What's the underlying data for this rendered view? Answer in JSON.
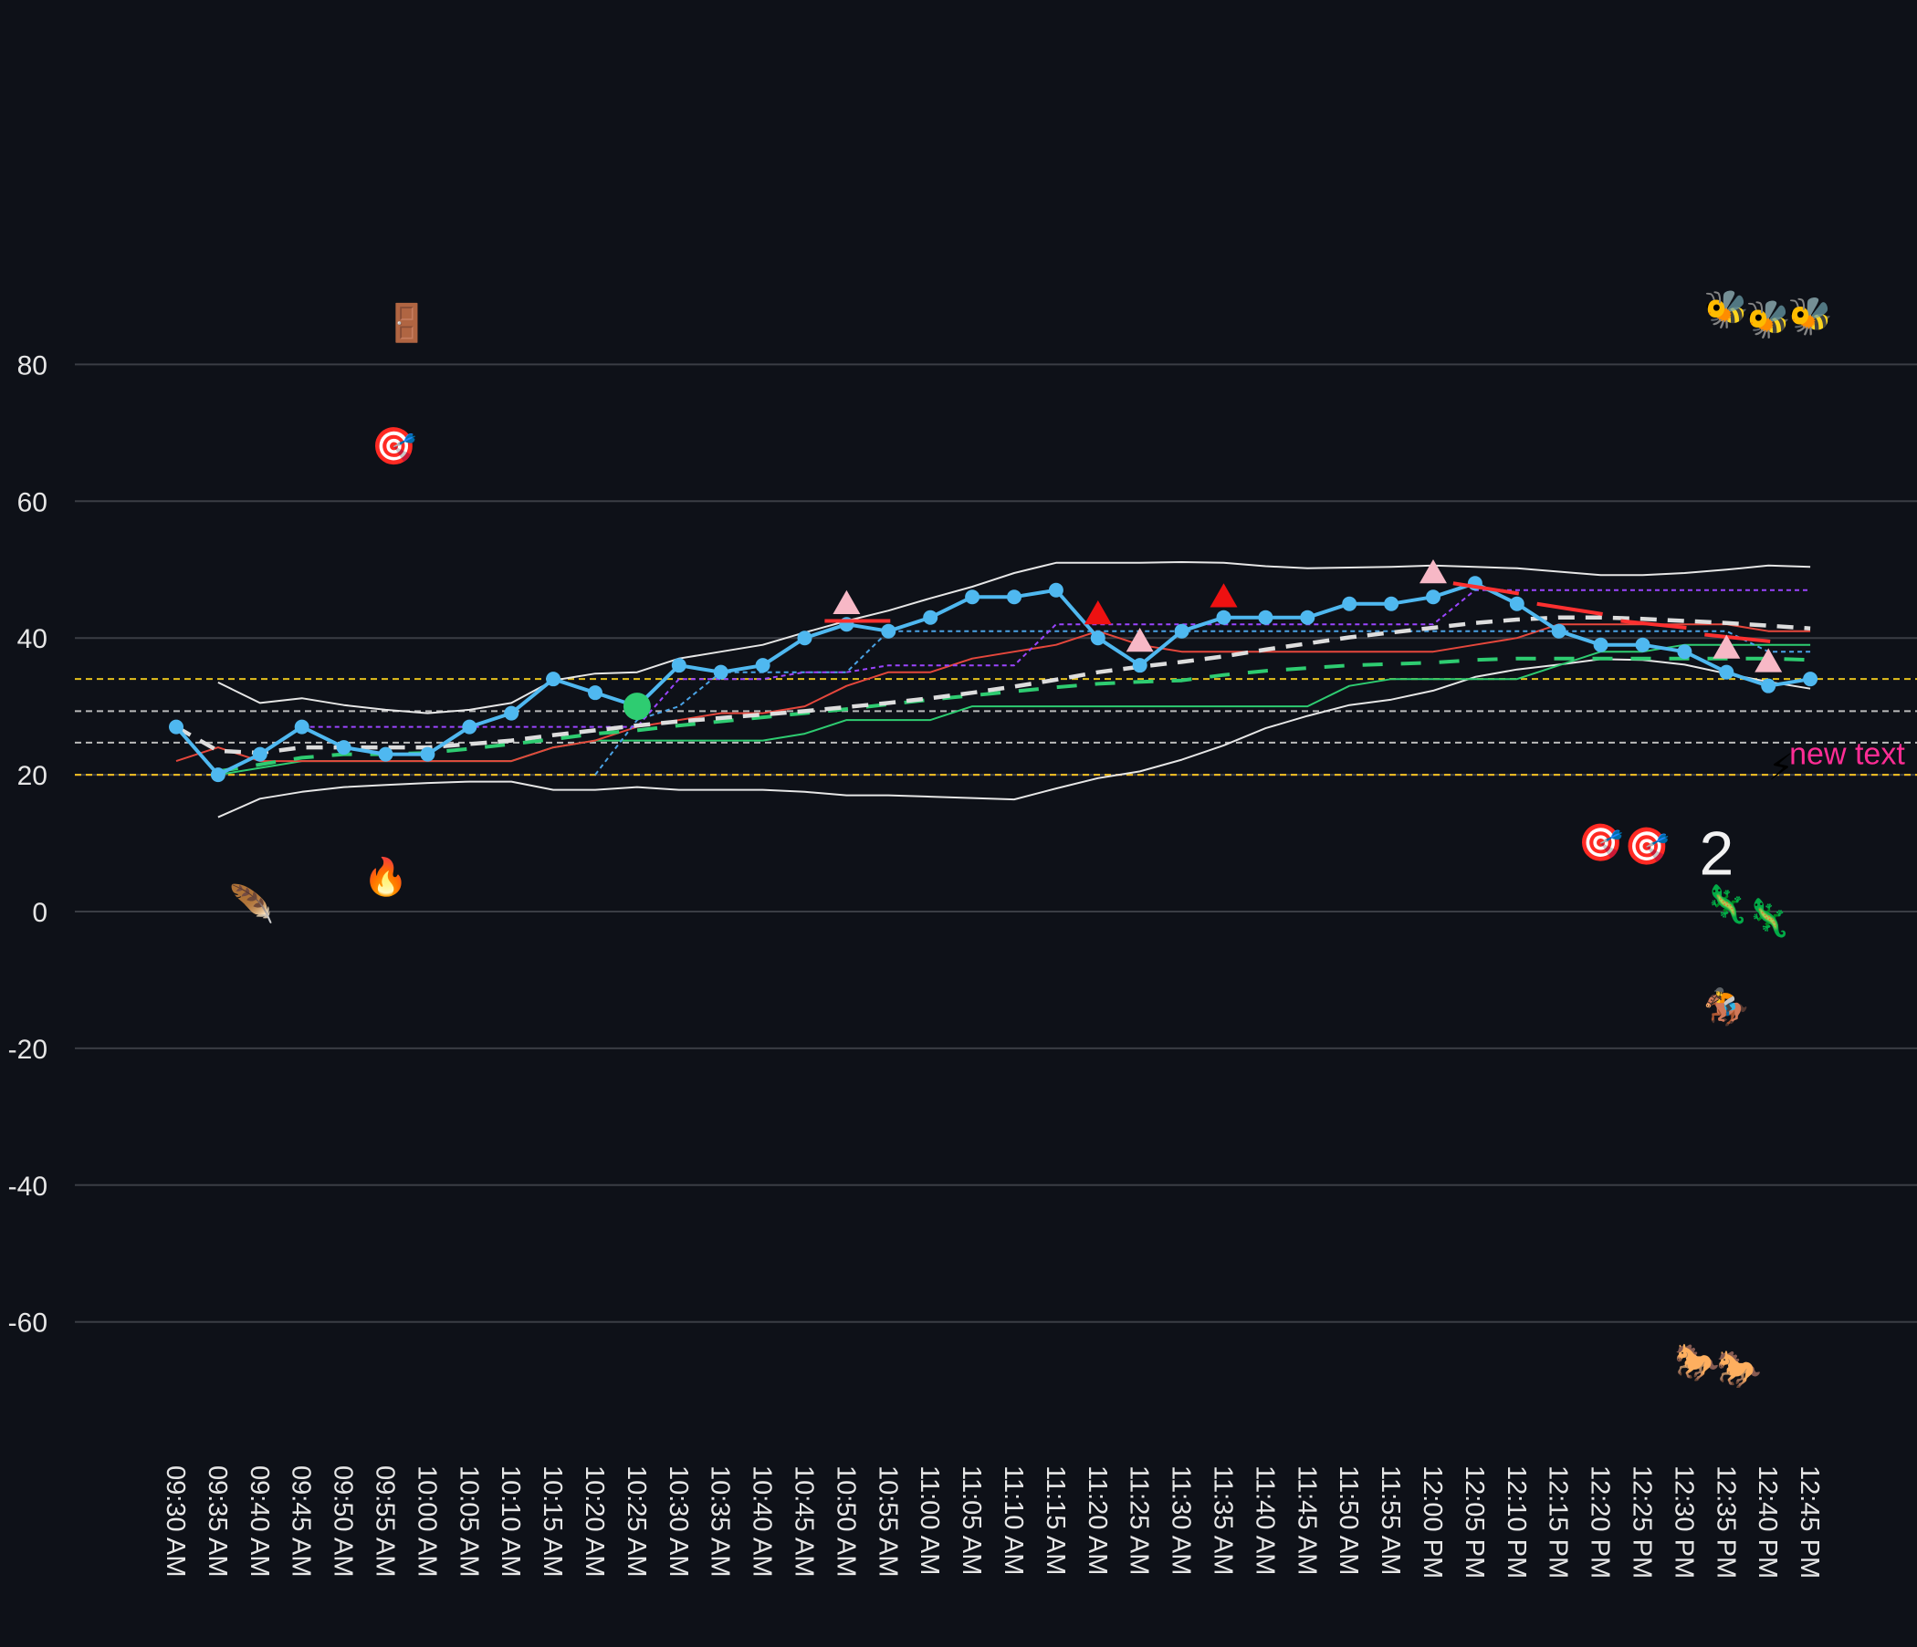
{
  "chart_data": {
    "type": "line",
    "title": "",
    "xlabel": "",
    "ylabel": "",
    "ylim": [
      -80,
      100
    ],
    "yticks": [
      80,
      60,
      40,
      20,
      0,
      -20,
      -40,
      -60
    ],
    "ytick_labels": [
      "80",
      "60",
      "40",
      "20",
      "0",
      "-20",
      "-40",
      "-60"
    ],
    "grid": "horizontal",
    "categories": [
      "09:30 AM",
      "09:35 AM",
      "09:40 AM",
      "09:45 AM",
      "09:50 AM",
      "09:55 AM",
      "10:00 AM",
      "10:05 AM",
      "10:10 AM",
      "10:15 AM",
      "10:20 AM",
      "10:25 AM",
      "10:30 AM",
      "10:35 AM",
      "10:40 AM",
      "10:45 AM",
      "10:50 AM",
      "10:55 AM",
      "11:00 AM",
      "11:05 AM",
      "11:10 AM",
      "11:15 AM",
      "11:20 AM",
      "11:25 AM",
      "11:30 AM",
      "11:35 AM",
      "11:40 AM",
      "11:45 AM",
      "11:50 AM",
      "11:55 AM",
      "12:00 PM",
      "12:05 PM",
      "12:10 PM",
      "12:15 PM",
      "12:20 PM",
      "12:25 PM",
      "12:30 PM",
      "12:35 PM",
      "12:40 PM",
      "12:45 PM"
    ],
    "series": [
      {
        "key": "price",
        "style": "price",
        "color": "#4fb8f0",
        "values": [
          27,
          20,
          23,
          27,
          24,
          23,
          23,
          27,
          29,
          34,
          32,
          30,
          36,
          35,
          36,
          40,
          42,
          41,
          43,
          46,
          46,
          47,
          40,
          36,
          41,
          43,
          43,
          43,
          45,
          45,
          46,
          48,
          45,
          41,
          39,
          39,
          38,
          35,
          33,
          34
        ]
      },
      {
        "key": "bb_upper",
        "style": "thin",
        "color": "#e6e6e6",
        "values": [
          null,
          33.5,
          30.5,
          31.2,
          30.2,
          29.5,
          29.0,
          29.5,
          30.5,
          33.8,
          34.8,
          35.0,
          37.0,
          38.0,
          39.0,
          40.8,
          42.5,
          44.0,
          45.8,
          47.5,
          49.5,
          51.0,
          51.0,
          51.0,
          51.1,
          51.0,
          50.5,
          50.2,
          50.3,
          50.4,
          50.6,
          50.4,
          50.2,
          49.7,
          49.2,
          49.2,
          49.5,
          50.0,
          50.6,
          50.4
        ]
      },
      {
        "key": "bb_lower",
        "style": "thin",
        "color": "#e6e6e6",
        "values": [
          null,
          13.8,
          16.5,
          17.5,
          18.2,
          18.5,
          18.8,
          19.0,
          19.0,
          17.8,
          17.8,
          18.2,
          17.8,
          17.8,
          17.8,
          17.5,
          17.0,
          17.0,
          16.8,
          16.6,
          16.4,
          18.0,
          19.5,
          20.5,
          22.2,
          24.3,
          26.8,
          28.6,
          30.2,
          31.0,
          32.3,
          34.3,
          35.4,
          36.1,
          36.9,
          36.8,
          36.1,
          34.8,
          33.6,
          32.6
        ]
      },
      {
        "key": "ema_fast",
        "style": "thin",
        "color": "#e5473c",
        "values": [
          22,
          24,
          22,
          22,
          22,
          22,
          22,
          22,
          22,
          24,
          25,
          27,
          28,
          29,
          29,
          30,
          33,
          35,
          35,
          37,
          38,
          39,
          41,
          39,
          38,
          38,
          38,
          38,
          38,
          38,
          38,
          39,
          40,
          42,
          42,
          42,
          42,
          42,
          41,
          41
        ]
      },
      {
        "key": "ema_slow",
        "style": "thin",
        "color": "#2ecc71",
        "values": [
          null,
          20,
          21,
          22,
          22,
          22,
          22,
          22,
          22,
          24,
          25,
          25,
          25,
          25,
          25,
          26,
          28,
          28,
          28,
          30,
          30,
          30,
          30,
          30,
          30,
          30,
          30,
          30,
          33,
          34,
          34,
          34,
          34,
          36,
          38,
          38,
          39,
          39,
          39,
          39
        ]
      },
      {
        "key": "sma_dashed",
        "style": "dashed",
        "color": "#dddddd",
        "values": [
          27,
          23.5,
          23.2,
          24,
          24,
          24,
          24,
          24.5,
          25,
          25.8,
          26.5,
          27.2,
          27.8,
          28.3,
          28.8,
          29.3,
          29.9,
          30.5,
          31.2,
          32,
          32.9,
          33.9,
          35,
          35.8,
          36.5,
          37.3,
          38.3,
          39.2,
          40.1,
          40.8,
          41.5,
          42.2,
          42.7,
          43,
          43,
          42.8,
          42.5,
          42.2,
          41.8,
          41.4
        ]
      },
      {
        "key": "trend_green",
        "style": "greendash",
        "color": "#2ecc71",
        "values": [
          null,
          20.5,
          21.5,
          22.5,
          23,
          23,
          23.2,
          23.8,
          24.5,
          25.2,
          26,
          26.5,
          27.2,
          27.8,
          28.4,
          29,
          29.6,
          30.3,
          31,
          31.6,
          32.2,
          32.8,
          33.3,
          33.6,
          33.8,
          34.6,
          35.2,
          35.6,
          36,
          36.2,
          36.4,
          36.8,
          37,
          37,
          37,
          37,
          37,
          37,
          37,
          36.8
        ]
      },
      {
        "key": "step_purple",
        "style": "dotted",
        "color": "#9b45ff",
        "values": [
          null,
          null,
          null,
          27,
          27,
          27,
          27,
          27,
          27,
          27,
          27,
          27,
          34,
          34,
          34,
          35,
          35,
          36,
          36,
          36,
          36,
          42,
          42,
          42,
          42,
          42,
          42,
          42,
          42,
          42,
          42,
          47,
          47,
          47,
          47,
          47,
          47,
          47,
          47,
          47
        ]
      },
      {
        "key": "step_blue",
        "style": "dotted",
        "color": "#4aa3e6",
        "values": [
          null,
          null,
          null,
          null,
          null,
          null,
          null,
          null,
          null,
          null,
          20,
          28,
          30,
          35,
          35,
          35,
          35,
          41,
          41,
          41,
          41,
          41,
          41,
          41,
          41,
          41,
          41,
          41,
          41,
          41,
          41,
          41,
          41,
          41,
          41,
          41,
          41,
          41,
          38,
          38
        ]
      }
    ],
    "hlines": [
      {
        "y": 34.0,
        "color": "#e6c11c"
      },
      {
        "y": 29.3,
        "color": "#bbbbbb"
      },
      {
        "y": 24.7,
        "color": "#bbbbbb"
      },
      {
        "y": 20.0,
        "color": "#ff2d95"
      },
      {
        "y": 20.0,
        "color": "#e6c11c"
      }
    ],
    "segments": [
      {
        "x1": "10:50 AM",
        "y1": 42.5,
        "x2": "10:55 AM",
        "y2": 42.5,
        "color": "#ff3030"
      },
      {
        "x1": "12:05 PM",
        "y1": 48,
        "x2": "12:10 PM",
        "y2": 46.5,
        "color": "#ff3030"
      },
      {
        "x1": "12:15 PM",
        "y1": 45,
        "x2": "12:20 PM",
        "y2": 43.5,
        "color": "#ff3030"
      },
      {
        "x1": "12:25 PM",
        "y1": 42.5,
        "x2": "12:30 PM",
        "y2": 41.5,
        "color": "#ff3030"
      },
      {
        "x1": "12:35 PM",
        "y1": 40.5,
        "x2": "12:40 PM",
        "y2": 39.5,
        "color": "#ff3030"
      }
    ],
    "markers": [
      {
        "x": "10:50 AM",
        "y": 45,
        "shape": "triangle",
        "color": "#f7b8c6"
      },
      {
        "x": "11:20 AM",
        "y": 43.5,
        "shape": "triangle",
        "color": "#ee1111"
      },
      {
        "x": "11:25 AM",
        "y": 39.5,
        "shape": "triangle",
        "color": "#f7b8c6"
      },
      {
        "x": "11:35 AM",
        "y": 46,
        "shape": "triangle",
        "color": "#ee1111"
      },
      {
        "x": "12:00 PM",
        "y": 49.5,
        "shape": "triangle",
        "color": "#f7b8c6"
      },
      {
        "x": "12:35 PM",
        "y": 38.5,
        "shape": "triangle",
        "color": "#f7b8c6"
      },
      {
        "x": "12:40 PM",
        "y": 36.5,
        "shape": "triangle",
        "color": "#f7b8c6"
      },
      {
        "x": "10:25 AM",
        "y": 30,
        "shape": "circle",
        "color": "#2ecc71"
      }
    ],
    "emoji_markers": [
      {
        "x": "09:55 AM",
        "x_offset": 0.5,
        "y": 86,
        "icon": "door-icon",
        "glyph": "🚪"
      },
      {
        "x": "09:55 AM",
        "x_offset": 0.2,
        "y": 68,
        "icon": "dart-target-icon",
        "glyph": "🎯"
      },
      {
        "x": "09:40 AM",
        "x_offset": -0.2,
        "y": 1,
        "icon": "feather-icon",
        "glyph": "🪶"
      },
      {
        "x": "09:55 AM",
        "x_offset": 0,
        "y": 5,
        "icon": "fire-icon",
        "glyph": "🔥"
      },
      {
        "x": "12:20 PM",
        "x_offset": 0,
        "y": 10,
        "icon": "dart-target-icon",
        "glyph": "🎯"
      },
      {
        "x": "12:25 PM",
        "x_offset": 0.1,
        "y": 9.5,
        "icon": "dart-target-icon",
        "glyph": "🎯"
      },
      {
        "x": "12:35 PM",
        "x_offset": 0,
        "y": 88,
        "icon": "bee-icon",
        "glyph": "🐝"
      },
      {
        "x": "12:40 PM",
        "x_offset": 0,
        "y": 86.5,
        "icon": "bee-icon",
        "glyph": "🐝"
      },
      {
        "x": "12:45 PM",
        "x_offset": 0,
        "y": 87,
        "icon": "bee-icon",
        "glyph": "🐝"
      },
      {
        "x": "12:35 PM",
        "x_offset": 0,
        "y": 1,
        "icon": "lizard-icon",
        "glyph": "🦎"
      },
      {
        "x": "12:40 PM",
        "x_offset": 0,
        "y": -1,
        "icon": "lizard-icon",
        "glyph": "🦎"
      },
      {
        "x": "12:35 PM",
        "x_offset": 0,
        "y": -14,
        "icon": "horse-racing-icon",
        "glyph": "🏇"
      },
      {
        "x": "12:30 PM",
        "x_offset": 0.3,
        "y": -66,
        "icon": "horse-icon",
        "glyph": "🐎"
      },
      {
        "x": "12:35 PM",
        "x_offset": 0.3,
        "y": -67,
        "icon": "horse-icon",
        "glyph": "🐎"
      },
      {
        "x": "12:40 PM",
        "x_offset": 0.3,
        "y": 21,
        "icon": "lightning-icon",
        "glyph": "⚡"
      }
    ],
    "annotations": [
      {
        "text": "new text",
        "x": "12:45 PM",
        "x_offset": -0.5,
        "y": 23,
        "color": "#ff2d95",
        "size": "normal"
      },
      {
        "text": "2",
        "x": "12:25 PM",
        "x_offset": 1.35,
        "y": 8.5,
        "color": "#f2f2f2",
        "size": "large"
      }
    ]
  }
}
